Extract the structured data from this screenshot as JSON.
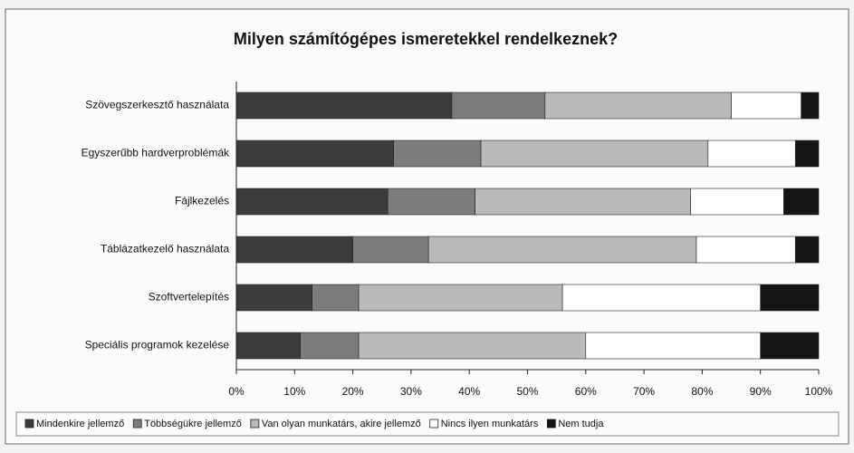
{
  "chart_data": {
    "type": "stacked-bar-horizontal",
    "title": "Milyen számítógépes ismeretekkel rendelkeznek?",
    "categories": [
      "Szövegszerkesztő használata",
      "Egyszerűbb hardverproblémák",
      "Fájlkezelés",
      "Táblázatkezelő használata",
      "Szoftvertelepítés",
      "Speciális programok kezelése"
    ],
    "series": [
      {
        "name": "Mindenkire jellemző",
        "color": "#3c3c3c",
        "values": [
          37,
          27,
          26,
          20,
          13,
          11
        ]
      },
      {
        "name": "Többségükre jellemző",
        "color": "#7c7c7c",
        "values": [
          16,
          15,
          15,
          13,
          8,
          10
        ]
      },
      {
        "name": "Van olyan munkatárs, akire jellemző",
        "color": "#bababa",
        "values": [
          32,
          39,
          37,
          46,
          35,
          39
        ]
      },
      {
        "name": "Nincs ilyen munkatárs",
        "color": "#ffffff",
        "values": [
          12,
          15,
          16,
          17,
          34,
          30
        ]
      },
      {
        "name": "Nem tudja",
        "color": "#141414",
        "values": [
          3,
          4,
          6,
          4,
          10,
          10
        ]
      }
    ],
    "xlim": [
      0,
      100
    ],
    "xticks": [
      {
        "value": 0,
        "label": "0%"
      },
      {
        "value": 10,
        "label": "10%"
      },
      {
        "value": 20,
        "label": "20%"
      },
      {
        "value": 30,
        "label": "30%"
      },
      {
        "value": 40,
        "label": "40%"
      },
      {
        "value": 50,
        "label": "50%"
      },
      {
        "value": 60,
        "label": "60%"
      },
      {
        "value": 70,
        "label": "70%"
      },
      {
        "value": 80,
        "label": "80%"
      },
      {
        "value": 90,
        "label": "90%"
      },
      {
        "value": 100,
        "label": "100%"
      }
    ],
    "legend": "bottom"
  }
}
